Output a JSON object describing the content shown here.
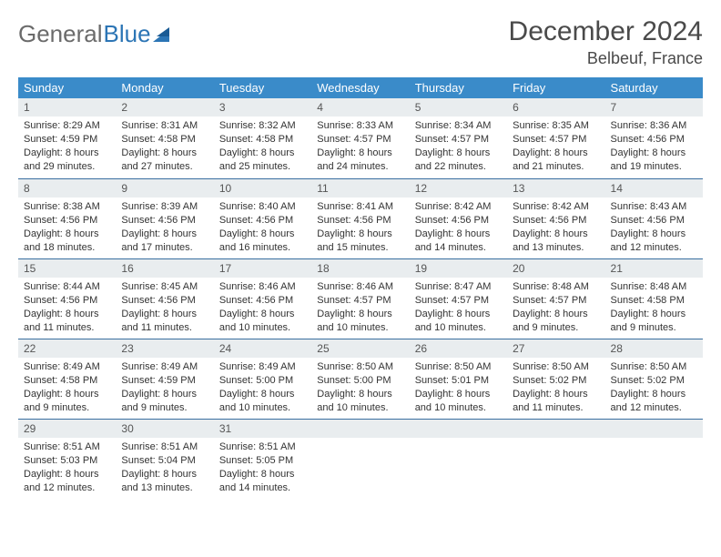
{
  "brand": {
    "part1": "General",
    "part2": "Blue"
  },
  "title": "December 2024",
  "location": "Belbeuf, France",
  "colors": {
    "header_bg": "#3a8bc9",
    "header_text": "#ffffff",
    "daynum_bg": "#e9edef",
    "row_sep": "#3a6fa0",
    "logo_grey": "#6b6b6b",
    "logo_blue": "#2c75b5"
  },
  "dayNames": [
    "Sunday",
    "Monday",
    "Tuesday",
    "Wednesday",
    "Thursday",
    "Friday",
    "Saturday"
  ],
  "weeks": [
    [
      {
        "n": "1",
        "sr": "8:29 AM",
        "ss": "4:59 PM",
        "dl": "8 hours and 29 minutes."
      },
      {
        "n": "2",
        "sr": "8:31 AM",
        "ss": "4:58 PM",
        "dl": "8 hours and 27 minutes."
      },
      {
        "n": "3",
        "sr": "8:32 AM",
        "ss": "4:58 PM",
        "dl": "8 hours and 25 minutes."
      },
      {
        "n": "4",
        "sr": "8:33 AM",
        "ss": "4:57 PM",
        "dl": "8 hours and 24 minutes."
      },
      {
        "n": "5",
        "sr": "8:34 AM",
        "ss": "4:57 PM",
        "dl": "8 hours and 22 minutes."
      },
      {
        "n": "6",
        "sr": "8:35 AM",
        "ss": "4:57 PM",
        "dl": "8 hours and 21 minutes."
      },
      {
        "n": "7",
        "sr": "8:36 AM",
        "ss": "4:56 PM",
        "dl": "8 hours and 19 minutes."
      }
    ],
    [
      {
        "n": "8",
        "sr": "8:38 AM",
        "ss": "4:56 PM",
        "dl": "8 hours and 18 minutes."
      },
      {
        "n": "9",
        "sr": "8:39 AM",
        "ss": "4:56 PM",
        "dl": "8 hours and 17 minutes."
      },
      {
        "n": "10",
        "sr": "8:40 AM",
        "ss": "4:56 PM",
        "dl": "8 hours and 16 minutes."
      },
      {
        "n": "11",
        "sr": "8:41 AM",
        "ss": "4:56 PM",
        "dl": "8 hours and 15 minutes."
      },
      {
        "n": "12",
        "sr": "8:42 AM",
        "ss": "4:56 PM",
        "dl": "8 hours and 14 minutes."
      },
      {
        "n": "13",
        "sr": "8:42 AM",
        "ss": "4:56 PM",
        "dl": "8 hours and 13 minutes."
      },
      {
        "n": "14",
        "sr": "8:43 AM",
        "ss": "4:56 PM",
        "dl": "8 hours and 12 minutes."
      }
    ],
    [
      {
        "n": "15",
        "sr": "8:44 AM",
        "ss": "4:56 PM",
        "dl": "8 hours and 11 minutes."
      },
      {
        "n": "16",
        "sr": "8:45 AM",
        "ss": "4:56 PM",
        "dl": "8 hours and 11 minutes."
      },
      {
        "n": "17",
        "sr": "8:46 AM",
        "ss": "4:56 PM",
        "dl": "8 hours and 10 minutes."
      },
      {
        "n": "18",
        "sr": "8:46 AM",
        "ss": "4:57 PM",
        "dl": "8 hours and 10 minutes."
      },
      {
        "n": "19",
        "sr": "8:47 AM",
        "ss": "4:57 PM",
        "dl": "8 hours and 10 minutes."
      },
      {
        "n": "20",
        "sr": "8:48 AM",
        "ss": "4:57 PM",
        "dl": "8 hours and 9 minutes."
      },
      {
        "n": "21",
        "sr": "8:48 AM",
        "ss": "4:58 PM",
        "dl": "8 hours and 9 minutes."
      }
    ],
    [
      {
        "n": "22",
        "sr": "8:49 AM",
        "ss": "4:58 PM",
        "dl": "8 hours and 9 minutes."
      },
      {
        "n": "23",
        "sr": "8:49 AM",
        "ss": "4:59 PM",
        "dl": "8 hours and 9 minutes."
      },
      {
        "n": "24",
        "sr": "8:49 AM",
        "ss": "5:00 PM",
        "dl": "8 hours and 10 minutes."
      },
      {
        "n": "25",
        "sr": "8:50 AM",
        "ss": "5:00 PM",
        "dl": "8 hours and 10 minutes."
      },
      {
        "n": "26",
        "sr": "8:50 AM",
        "ss": "5:01 PM",
        "dl": "8 hours and 10 minutes."
      },
      {
        "n": "27",
        "sr": "8:50 AM",
        "ss": "5:02 PM",
        "dl": "8 hours and 11 minutes."
      },
      {
        "n": "28",
        "sr": "8:50 AM",
        "ss": "5:02 PM",
        "dl": "8 hours and 12 minutes."
      }
    ],
    [
      {
        "n": "29",
        "sr": "8:51 AM",
        "ss": "5:03 PM",
        "dl": "8 hours and 12 minutes."
      },
      {
        "n": "30",
        "sr": "8:51 AM",
        "ss": "5:04 PM",
        "dl": "8 hours and 13 minutes."
      },
      {
        "n": "31",
        "sr": "8:51 AM",
        "ss": "5:05 PM",
        "dl": "8 hours and 14 minutes."
      },
      null,
      null,
      null,
      null
    ]
  ],
  "labels": {
    "sunrise": "Sunrise: ",
    "sunset": "Sunset: ",
    "daylight": "Daylight: "
  }
}
